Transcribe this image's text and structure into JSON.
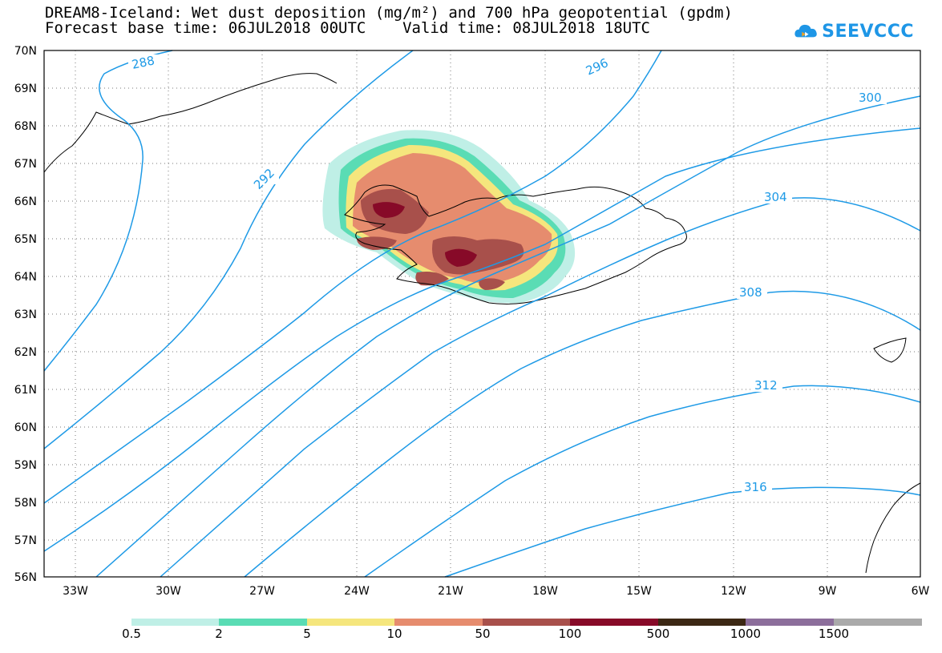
{
  "header": {
    "title_line1": "DREAM8-Iceland: Wet dust deposition (mg/m²) and 700 hPa geopotential (gpdm)",
    "title_line2": "Forecast base time: 06JUL2018 00UTC    Valid time: 08JUL2018 18UTC"
  },
  "logo": {
    "text": "SEEVCCC",
    "icon": "cloud-icon",
    "color": "#1e96e6"
  },
  "map": {
    "lat_labels": [
      "70N",
      "69N",
      "68N",
      "67N",
      "66N",
      "65N",
      "64N",
      "63N",
      "62N",
      "61N",
      "60N",
      "59N",
      "58N",
      "57N",
      "56N"
    ],
    "lon_labels": [
      "33W",
      "30W",
      "27W",
      "24W",
      "21W",
      "18W",
      "15W",
      "12W",
      "9W",
      "6W"
    ],
    "contour_labels": [
      "288",
      "292",
      "296",
      "300",
      "304",
      "308",
      "312",
      "316"
    ],
    "contour_color": "#1e9ae6"
  },
  "legend": {
    "labels": [
      "0.5",
      "2",
      "5",
      "10",
      "50",
      "100",
      "500",
      "1000",
      "1500"
    ],
    "colors": [
      "#bfefe6",
      "#5adcb4",
      "#f5e67d",
      "#e68c6e",
      "#a8504b",
      "#870a28",
      "#3c2814",
      "#8c6e9b",
      "#aaaaaa"
    ]
  }
}
